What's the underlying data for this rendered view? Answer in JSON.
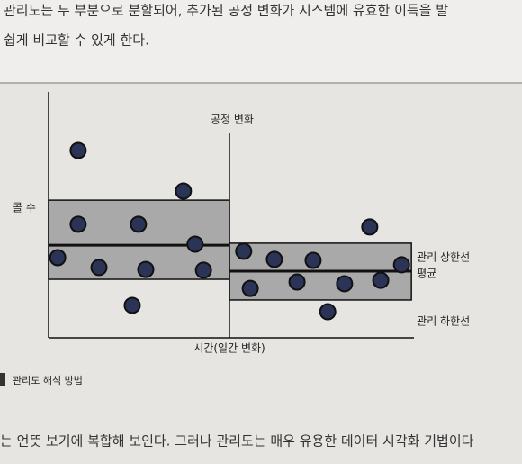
{
  "document": {
    "text_top": [
      "관리도는 두 부분으로 분할되어, 추가된 공정 변화가 시스템에 유효한 이득을 발",
      "쉽게 비교할 수 있게 한다."
    ],
    "caption": "관리도 해석 방법",
    "text_bottom": "는 언뜻 보기에 복합해 보인다. 그러나 관리도는 매우 유용한 데이터 시각화 기법이다"
  },
  "chart_data": {
    "type": "control",
    "y_label": "콜 수",
    "x_label": "시간(일간 변화)",
    "xlim": [
      0,
      100
    ],
    "ylim": [
      0,
      100
    ],
    "annotation": {
      "x": 49.5,
      "label": "공정 변화"
    },
    "limit_labels": [
      "관리 상한선",
      "평균",
      "관리 하한선"
    ],
    "phases": [
      {
        "xlim": [
          0,
          49.5
        ],
        "ucl": 56,
        "mean": 37.7,
        "lcl": 23.8
      },
      {
        "xlim": [
          49.5,
          99.3
        ],
        "ucl": 38.5,
        "mean": 27.1,
        "lcl": 15.4
      }
    ],
    "color": "#2b3457",
    "band_color": "#a9a9a9",
    "x": [
      8.1,
      36.9,
      8.1,
      24.6,
      40.1,
      2.5,
      13.8,
      26.6,
      42.4,
      22.9,
      53.4,
      61.8,
      72.4,
      87.9,
      96.6,
      55.2,
      68,
      81,
      90.9,
      76.4
    ],
    "values": [
      76.2,
      59.7,
      46.2,
      46.2,
      38.1,
      32.6,
      28.6,
      27.8,
      27.5,
      13.2,
      35.2,
      31.9,
      31.5,
      45.1,
      29.7,
      20.1,
      22.7,
      22,
      23.4,
      10.6
    ]
  }
}
